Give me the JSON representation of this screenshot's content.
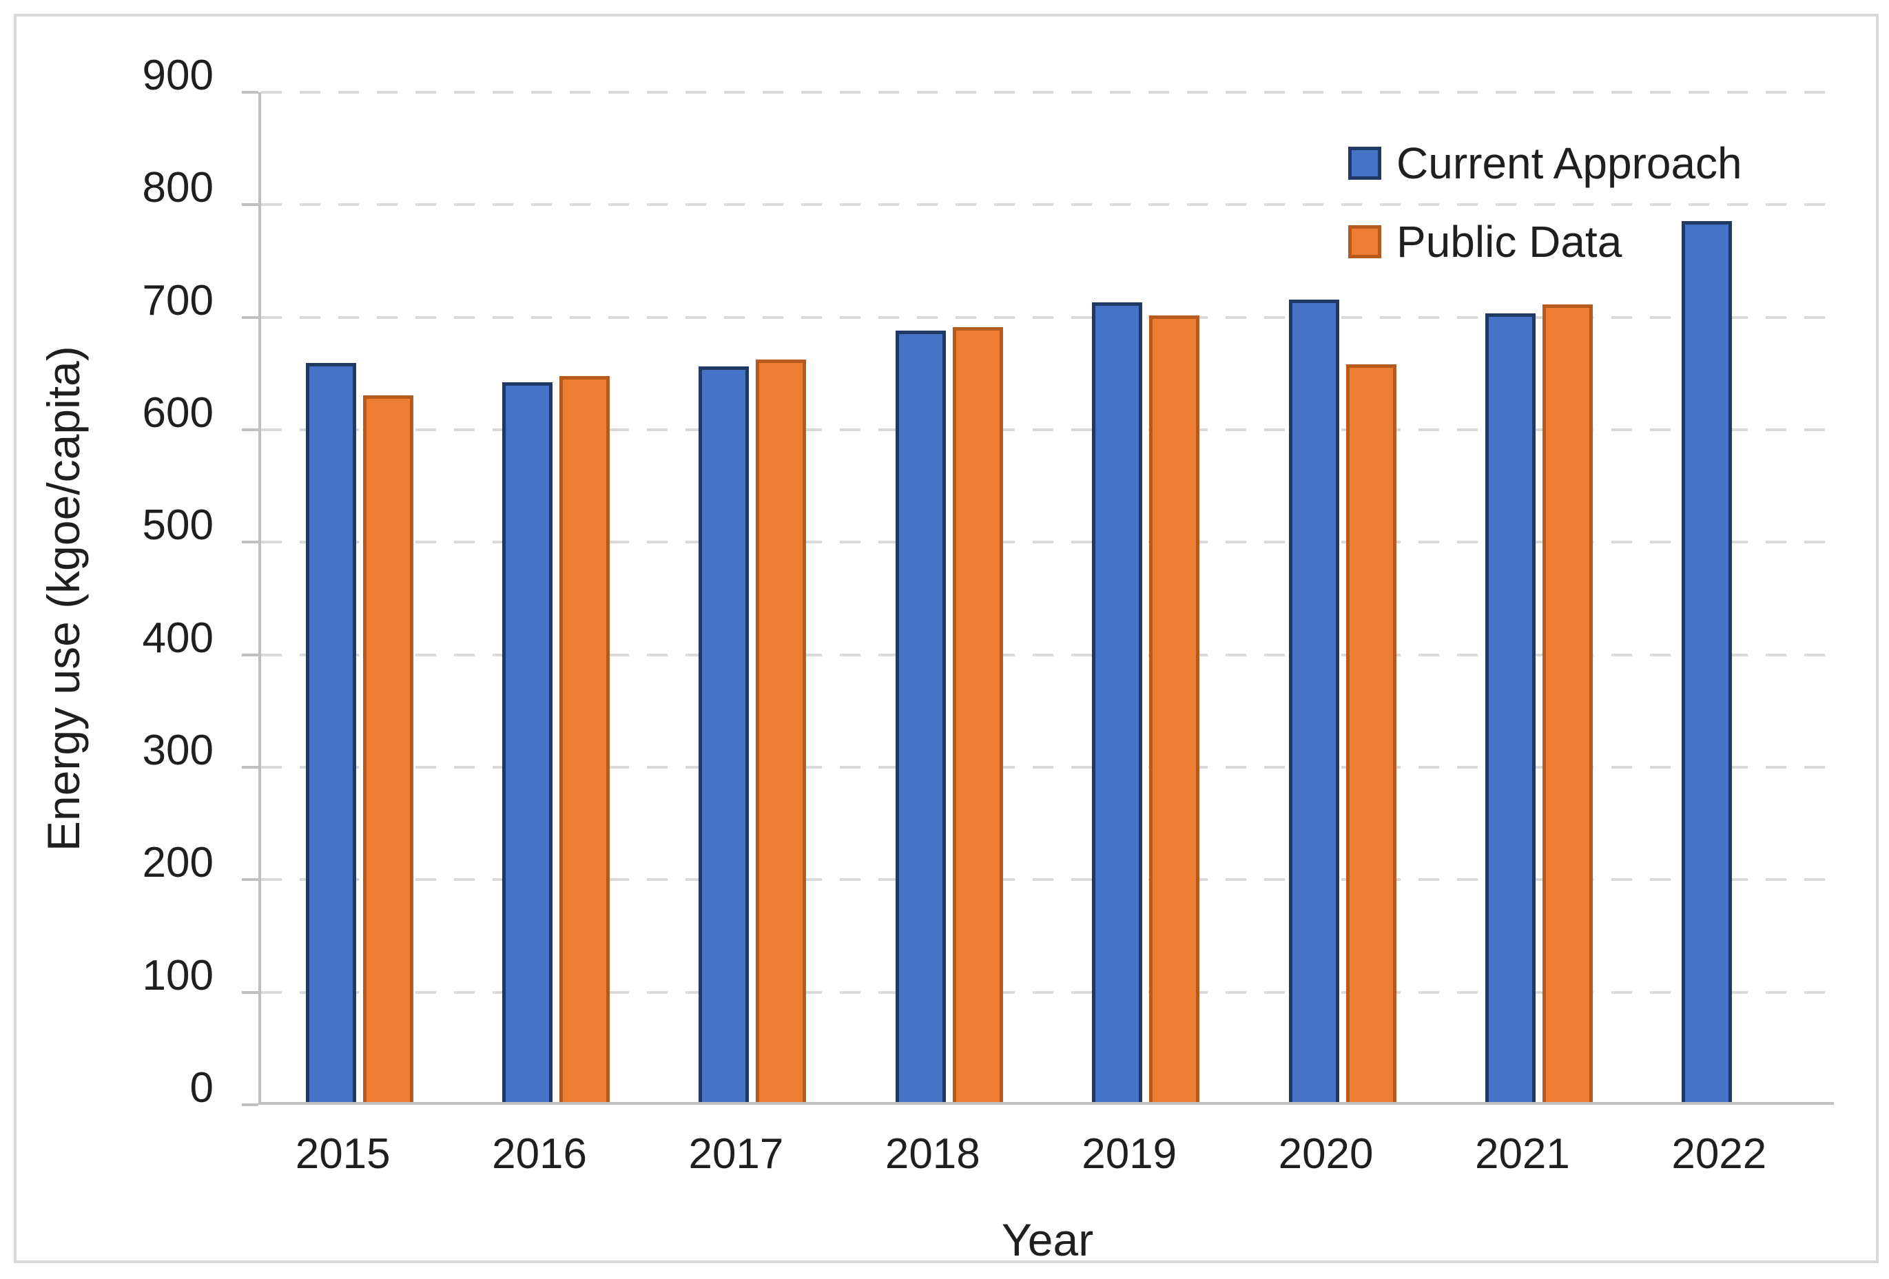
{
  "chart_data": {
    "type": "bar",
    "title": "",
    "categories": [
      "2015",
      "2016",
      "2017",
      "2018",
      "2019",
      "2020",
      "2021",
      "2022"
    ],
    "series": [
      {
        "name": "Current Approach",
        "fill": "#4472C4",
        "border": "#1F3864",
        "values": [
          657,
          640,
          654,
          686,
          711,
          713,
          701,
          783
        ]
      },
      {
        "name": "Public Data",
        "fill": "#ED7D31",
        "border": "#B75A1D",
        "values": [
          628,
          645,
          660,
          689,
          699,
          656,
          709,
          null
        ]
      }
    ],
    "xlabel": "Year",
    "ylabel": "Energy use  (kgoe/capita)",
    "ylim": [
      0,
      900
    ],
    "ytick_step": 100,
    "yticks": [
      0,
      100,
      200,
      300,
      400,
      500,
      600,
      700,
      800,
      900
    ],
    "grid": "horizontal-dashed",
    "legend_position": "top-right"
  },
  "style": {
    "gridline_color": "#D9D9D9",
    "axis_color": "#BFBFBF",
    "text_color": "#1F1F1F",
    "frame_border_color": "#D9D9D9",
    "background": "#FFFFFF"
  }
}
